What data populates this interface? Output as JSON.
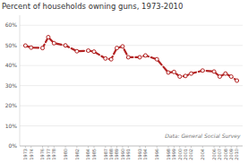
{
  "chart_data": {
    "type": "line",
    "title": "Percent of households owning guns, 1973-2010",
    "x": [
      1973,
      1974,
      1976,
      1977,
      1978,
      1980,
      1982,
      1984,
      1985,
      1987,
      1988,
      1989,
      1990,
      1991,
      1993,
      1994,
      1996,
      1998,
      1999,
      2000,
      2001,
      2002,
      2004,
      2006,
      2007,
      2008,
      2009,
      2010
    ],
    "values": [
      0.499,
      0.489,
      0.487,
      0.541,
      0.511,
      0.5,
      0.471,
      0.474,
      0.469,
      0.435,
      0.431,
      0.487,
      0.495,
      0.441,
      0.441,
      0.45,
      0.431,
      0.365,
      0.368,
      0.345,
      0.348,
      0.36,
      0.375,
      0.37,
      0.345,
      0.36,
      0.345,
      0.325
    ],
    "color": "#b22222",
    "marker": "circle",
    "line_style": "dashed",
    "xlim": [
      1972,
      2011
    ],
    "xticks": [
      1973,
      1974,
      1976,
      1977,
      1978,
      1980,
      1982,
      1984,
      1985,
      1987,
      1988,
      1989,
      1990,
      1991,
      1993,
      1994,
      1996,
      1998,
      1999,
      2000,
      2001,
      2002,
      2004,
      2006,
      2007,
      2008,
      2009,
      2010
    ],
    "ylim": [
      0,
      0.65
    ],
    "yticks": [
      {
        "value": 0.0,
        "label": "0%"
      },
      {
        "value": 0.1,
        "label": "10%"
      },
      {
        "value": 0.2,
        "label": "20%"
      },
      {
        "value": 0.3,
        "label": "30%"
      },
      {
        "value": 0.4,
        "label": "40%"
      },
      {
        "value": 0.5,
        "label": "50%"
      },
      {
        "value": 0.6,
        "label": "60%"
      }
    ],
    "grid": true,
    "annotation": "Data: General Social Survey"
  }
}
